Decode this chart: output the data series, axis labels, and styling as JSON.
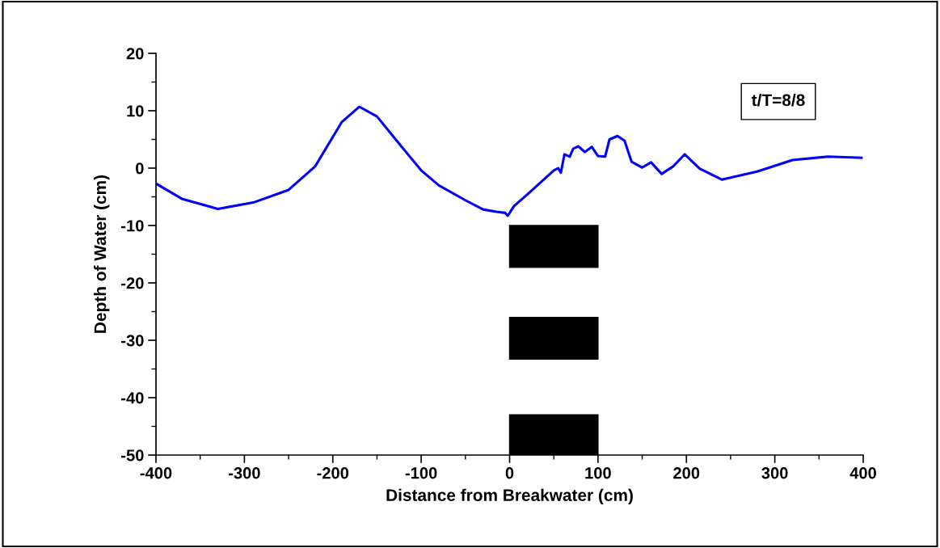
{
  "chart_data": {
    "type": "line",
    "xlabel": "Distance from Breakwater (cm)",
    "ylabel": "Depth of Water (cm)",
    "annotations": [
      "t/T=8/8"
    ],
    "xlim": [
      -400,
      400
    ],
    "xticks": [
      -400,
      -300,
      -200,
      -100,
      0,
      100,
      200,
      300,
      400
    ],
    "ylim": [
      -50,
      20
    ],
    "yticks": [
      -50,
      -40,
      -30,
      -20,
      -10,
      0,
      10,
      20
    ],
    "grid": false,
    "legend": false,
    "marker": "none",
    "line_style": "solid",
    "series": [
      {
        "color": "#0000ff",
        "x": [
          -400,
          -370,
          -330,
          -290,
          -250,
          -220,
          -190,
          -170,
          -150,
          -130,
          -100,
          -80,
          -50,
          -30,
          -15,
          -5,
          -2,
          5,
          20,
          50,
          55,
          58,
          62,
          68,
          72,
          78,
          85,
          93,
          100,
          108,
          113,
          122,
          130,
          138,
          150,
          160,
          172,
          185,
          198,
          215,
          240,
          280,
          320,
          360,
          398
        ],
        "values": [
          -2.7,
          -5.4,
          -7.1,
          -6.0,
          -3.8,
          0.3,
          8.0,
          10.7,
          9.0,
          5.2,
          -0.4,
          -3.0,
          -5.6,
          -7.2,
          -7.6,
          -7.8,
          -8.3,
          -6.6,
          -4.6,
          -0.4,
          0.0,
          -0.8,
          2.4,
          2.0,
          3.4,
          3.8,
          2.8,
          3.7,
          2.1,
          2.0,
          5.0,
          5.6,
          4.8,
          1.1,
          0.1,
          1.0,
          -1.0,
          0.3,
          2.4,
          -0.1,
          -2.0,
          -0.6,
          1.4,
          2.0,
          1.8
        ]
      }
    ]
  }
}
